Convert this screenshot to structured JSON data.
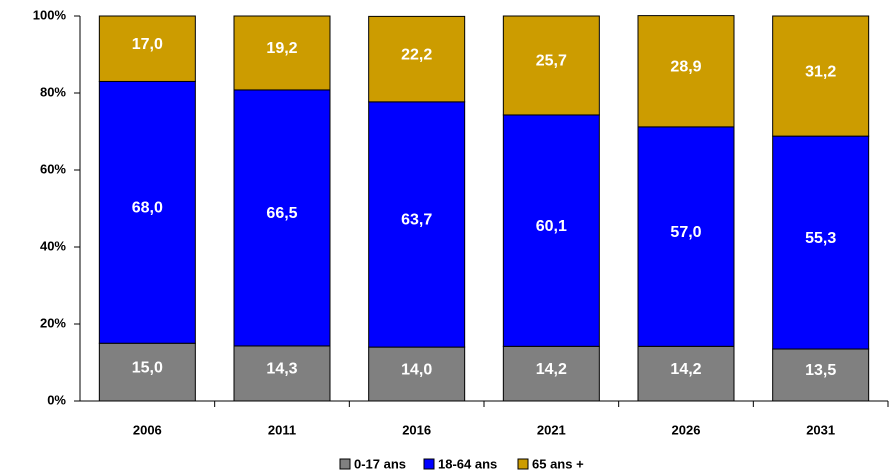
{
  "chart_data": {
    "type": "stacked_bar",
    "categories": [
      "2006",
      "2011",
      "2016",
      "2021",
      "2026",
      "2031"
    ],
    "series": [
      {
        "name": "0-17 ans",
        "color": "#808080",
        "values": [
          15.0,
          14.3,
          14.0,
          14.2,
          14.2,
          13.5
        ],
        "value_labels": [
          "15,0",
          "14,3",
          "14,0",
          "14,2",
          "14,2",
          "13,5"
        ]
      },
      {
        "name": "18-64 ans",
        "color": "#0000ff",
        "values": [
          68.0,
          66.5,
          63.7,
          60.1,
          57.0,
          55.3
        ],
        "value_labels": [
          "68,0",
          "66,5",
          "63,7",
          "60,1",
          "57,0",
          "55,3"
        ]
      },
      {
        "name": "65 ans +",
        "color": "#cc9c00",
        "values": [
          17.0,
          19.2,
          22.2,
          25.7,
          28.9,
          31.2
        ],
        "value_labels": [
          "17,0",
          "19,2",
          "22,2",
          "25,7",
          "28,9",
          "31,2"
        ]
      }
    ],
    "ylim": [
      0,
      100
    ],
    "yticks": [
      {
        "value": 0,
        "label": "0%"
      },
      {
        "value": 20,
        "label": "20%"
      },
      {
        "value": 40,
        "label": "40%"
      },
      {
        "value": 60,
        "label": "60%"
      },
      {
        "value": 80,
        "label": "80%"
      },
      {
        "value": 100,
        "label": "100%"
      }
    ],
    "legend": "bottom"
  }
}
